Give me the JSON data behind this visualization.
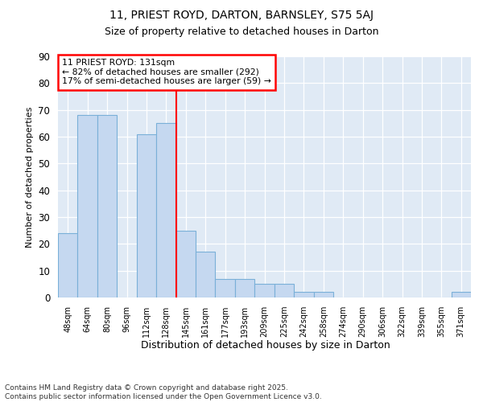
{
  "title1": "11, PRIEST ROYD, DARTON, BARNSLEY, S75 5AJ",
  "title2": "Size of property relative to detached houses in Darton",
  "xlabel": "Distribution of detached houses by size in Darton",
  "ylabel": "Number of detached properties",
  "categories": [
    "48sqm",
    "64sqm",
    "80sqm",
    "96sqm",
    "112sqm",
    "128sqm",
    "145sqm",
    "161sqm",
    "177sqm",
    "193sqm",
    "209sqm",
    "225sqm",
    "242sqm",
    "258sqm",
    "274sqm",
    "290sqm",
    "306sqm",
    "322sqm",
    "339sqm",
    "355sqm",
    "371sqm"
  ],
  "values": [
    24,
    68,
    68,
    0,
    61,
    65,
    25,
    17,
    7,
    7,
    5,
    5,
    2,
    2,
    0,
    0,
    0,
    0,
    0,
    0,
    2
  ],
  "bar_color": "#c5d8f0",
  "bar_edge_color": "#7ab0d8",
  "red_line_index": 5,
  "ylim": [
    0,
    90
  ],
  "yticks": [
    0,
    10,
    20,
    30,
    40,
    50,
    60,
    70,
    80,
    90
  ],
  "annotation_title": "11 PRIEST ROYD: 131sqm",
  "annotation_line1": "← 82% of detached houses are smaller (292)",
  "annotation_line2": "17% of semi-detached houses are larger (59) →",
  "footer": "Contains HM Land Registry data © Crown copyright and database right 2025.\nContains public sector information licensed under the Open Government Licence v3.0.",
  "fig_bg_color": "#ffffff",
  "plot_bg_color": "#e0eaf5"
}
